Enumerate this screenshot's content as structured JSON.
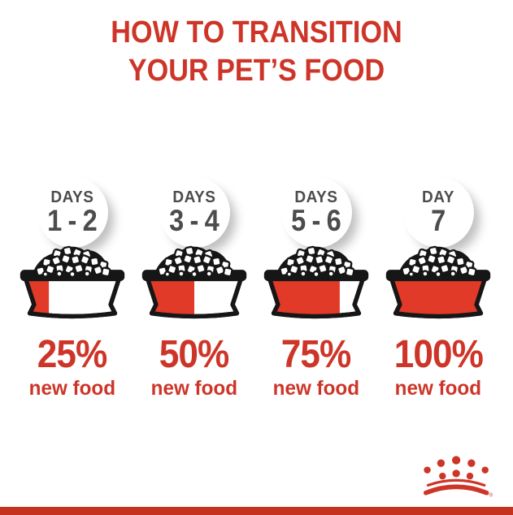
{
  "title": {
    "line1": "HOW TO TRANSITION",
    "line2": "YOUR PET’S FOOD"
  },
  "columns": [
    {
      "day_label": "DAYS",
      "day_range": "1 - 2",
      "percent": 25,
      "percent_label": "25%",
      "caption": "new food"
    },
    {
      "day_label": "DAYS",
      "day_range": "3 - 4",
      "percent": 50,
      "percent_label": "50%",
      "caption": "new food"
    },
    {
      "day_label": "DAYS",
      "day_range": "5 - 6",
      "percent": 75,
      "percent_label": "75%",
      "caption": "new food"
    },
    {
      "day_label": "DAY",
      "day_range": "7",
      "percent": 100,
      "percent_label": "100%",
      "caption": "new food"
    }
  ],
  "footer": {
    "logo": "royal-canin-crown"
  },
  "colors": {
    "accent_red": "#ce3529",
    "bowl_red": "#e13a28",
    "bar_red": "#c5321f",
    "day_text_gray": "#4c4c4c",
    "outline_black": "#161616",
    "background": "#ffffff"
  }
}
